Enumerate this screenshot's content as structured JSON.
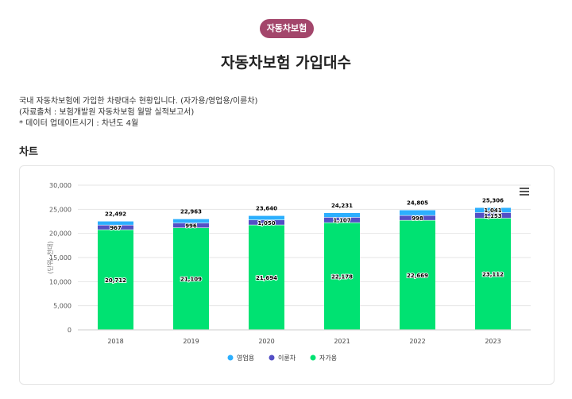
{
  "header": {
    "badge": "자동차보험",
    "title": "자동차보험 가입대수"
  },
  "description": {
    "line1": "국내 자동차보험에 가입한 차량대수 현황입니다. (자가용/영업용/이륜차)",
    "line2": "(자료출처 : 보험개발원 자동차보험 월말 실적보고서)",
    "line3": "* 데이터 업데이트시기 : 차년도 4월"
  },
  "section": {
    "title": "차트"
  },
  "chart_data": {
    "type": "bar",
    "stacked": true,
    "categories": [
      "2018",
      "2019",
      "2020",
      "2021",
      "2022",
      "2023"
    ],
    "series": [
      {
        "name": "자가용",
        "color": "#00e272",
        "values": [
          20712,
          21109,
          21694,
          22178,
          22669,
          23112
        ],
        "labels": [
          "20,712",
          "21,109",
          "21,694",
          "22,178",
          "22,669",
          "23,112"
        ]
      },
      {
        "name": "이륜차",
        "color": "#544fc5",
        "values": [
          967,
          996,
          1050,
          1107,
          998,
          1153
        ],
        "labels": [
          "967",
          "996",
          "1,050",
          "1,107",
          "998",
          "1,153"
        ]
      },
      {
        "name": "영업용",
        "color": "#2caffe",
        "values": [
          813,
          858,
          896,
          946,
          1138,
          1041
        ],
        "labels": [
          "",
          "",
          "",
          "",
          "",
          "1,041"
        ]
      }
    ],
    "totals": [
      22492,
      22963,
      23640,
      24231,
      24805,
      25306
    ],
    "total_labels": [
      "22,492",
      "22,963",
      "23,640",
      "24,231",
      "24,805",
      "25,306"
    ],
    "ylabel": "(단위: 천대)",
    "ylim": [
      0,
      30000
    ],
    "yticks": [
      0,
      5000,
      10000,
      15000,
      20000,
      25000,
      30000
    ],
    "ytick_labels": [
      "0",
      "5,000",
      "10,000",
      "15,000",
      "20,000",
      "25,000",
      "30,000"
    ],
    "legend": [
      "영업용",
      "이륜차",
      "자가용"
    ],
    "legend_position": "bottom",
    "grid": true
  }
}
